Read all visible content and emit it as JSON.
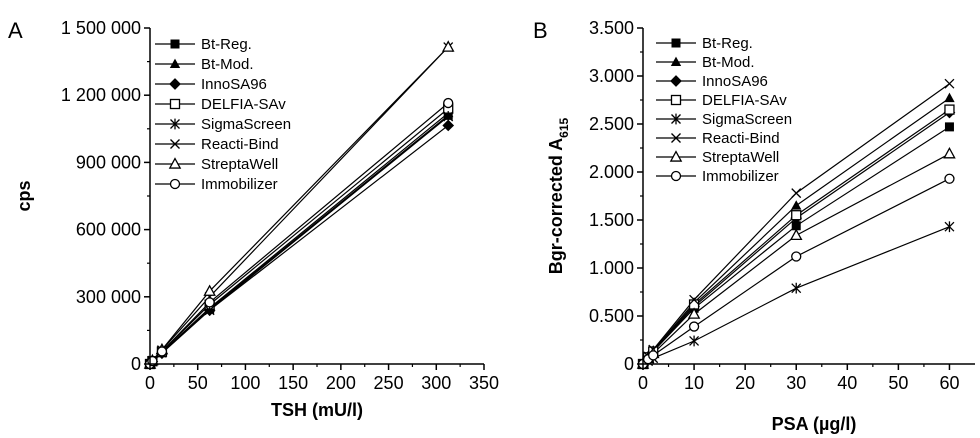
{
  "chart_data": [
    {
      "type": "line",
      "panel_label": "A",
      "xlabel": "TSH (mU/l)",
      "ylabel": "cps",
      "xlim": [
        0,
        350
      ],
      "ylim": [
        0,
        1500000
      ],
      "x_ticks": [
        0,
        50,
        100,
        150,
        200,
        250,
        300,
        350
      ],
      "x_tick_labels": [
        "0",
        "50",
        "100",
        "150",
        "200",
        "250",
        "300",
        "350"
      ],
      "y_ticks": [
        0,
        300000,
        600000,
        900000,
        1200000,
        1500000
      ],
      "y_tick_labels": [
        "0",
        "300 000",
        "600 000",
        "900 000",
        "1 200 000",
        "1 500 000"
      ],
      "legend_position": "top-left",
      "x": [
        0,
        2.5,
        12.5,
        62.5,
        312.5
      ],
      "series": [
        {
          "name": "Bt-Reg.",
          "marker": "filled-square",
          "values": [
            0,
            12000,
            50000,
            245000,
            1110000
          ]
        },
        {
          "name": "Bt-Mod.",
          "marker": "filled-triangle",
          "values": [
            0,
            12000,
            52000,
            250000,
            1120000
          ]
        },
        {
          "name": "InnoSA96",
          "marker": "filled-diamond",
          "values": [
            0,
            11000,
            48000,
            240000,
            1065000
          ]
        },
        {
          "name": "DELFIA-SAv",
          "marker": "open-square",
          "values": [
            0,
            12500,
            55000,
            265000,
            1140000
          ]
        },
        {
          "name": "SigmaScreen",
          "marker": "asterisk",
          "values": [
            0,
            11500,
            50000,
            240000,
            1105000
          ]
        },
        {
          "name": "Reacti-Bind",
          "marker": "cross",
          "values": [
            0,
            15000,
            62000,
            300000,
            1415000
          ]
        },
        {
          "name": "StreptaWell",
          "marker": "open-triangle",
          "values": [
            0,
            15500,
            64000,
            325000,
            1415000
          ]
        },
        {
          "name": "Immobilizer",
          "marker": "open-circle",
          "values": [
            0,
            13000,
            56000,
            275000,
            1165000
          ]
        }
      ]
    },
    {
      "type": "line",
      "panel_label": "B",
      "xlabel": "PSA (µg/l)",
      "ylabel_main": "Bgr-corrected A",
      "ylabel_subscript": "615",
      "xlim": [
        0,
        65
      ],
      "ylim": [
        0,
        3.5
      ],
      "x_ticks": [
        0,
        10,
        20,
        30,
        40,
        50,
        60
      ],
      "x_tick_labels": [
        "0",
        "10",
        "20",
        "30",
        "40",
        "50",
        "60"
      ],
      "y_ticks": [
        0,
        0.5,
        1.0,
        1.5,
        2.0,
        2.5,
        3.0,
        3.5
      ],
      "y_tick_labels": [
        "0",
        "0.500",
        "1.000",
        "1.500",
        "2.000",
        "2.500",
        "3.000",
        "3.500"
      ],
      "legend_position": "top-left",
      "x": [
        0,
        1,
        2,
        10,
        30,
        60
      ],
      "series": [
        {
          "name": "Bt-Reg.",
          "marker": "filled-square",
          "values": [
            0,
            0.07,
            0.13,
            0.58,
            1.44,
            2.47
          ]
        },
        {
          "name": "Bt-Mod.",
          "marker": "filled-triangle",
          "values": [
            0,
            0.08,
            0.14,
            0.64,
            1.65,
            2.77
          ]
        },
        {
          "name": "InnoSA96",
          "marker": "filled-diamond",
          "values": [
            0,
            0.07,
            0.13,
            0.6,
            1.52,
            2.62
          ]
        },
        {
          "name": "DELFIA-SAv",
          "marker": "open-square",
          "values": [
            0,
            0.07,
            0.13,
            0.62,
            1.55,
            2.65
          ]
        },
        {
          "name": "SigmaScreen",
          "marker": "asterisk",
          "values": [
            0,
            0.03,
            0.06,
            0.24,
            0.79,
            1.43
          ]
        },
        {
          "name": "Reacti-Bind",
          "marker": "cross",
          "values": [
            0,
            0.08,
            0.15,
            0.67,
            1.78,
            2.92
          ]
        },
        {
          "name": "StreptaWell",
          "marker": "open-triangle",
          "values": [
            0,
            0.06,
            0.11,
            0.52,
            1.34,
            2.19
          ]
        },
        {
          "name": "Immobilizer",
          "marker": "open-circle",
          "values": [
            0,
            0.05,
            0.09,
            0.39,
            1.12,
            1.93
          ]
        }
      ]
    }
  ]
}
